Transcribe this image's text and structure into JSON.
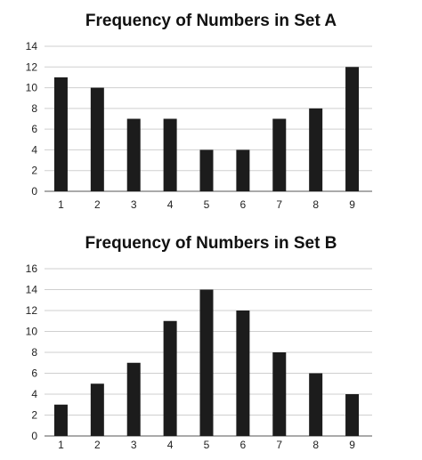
{
  "chart_data": [
    {
      "type": "bar",
      "title": "Frequency of Numbers in Set A",
      "xlabel": "",
      "ylabel": "",
      "categories": [
        "1",
        "2",
        "3",
        "4",
        "5",
        "6",
        "7",
        "8",
        "9"
      ],
      "values": [
        11,
        10,
        7,
        7,
        4,
        4,
        7,
        8,
        12
      ],
      "ylim": [
        0,
        14
      ],
      "yticks": [
        0,
        2,
        4,
        6,
        8,
        10,
        12,
        14
      ],
      "grid": true,
      "bar_color": "#1c1c1c"
    },
    {
      "type": "bar",
      "title": "Frequency of Numbers in Set B",
      "xlabel": "",
      "ylabel": "",
      "categories": [
        "1",
        "2",
        "3",
        "4",
        "5",
        "6",
        "7",
        "8",
        "9"
      ],
      "values": [
        3,
        5,
        7,
        11,
        14,
        12,
        8,
        6,
        4
      ],
      "ylim": [
        0,
        16
      ],
      "yticks": [
        0,
        2,
        4,
        6,
        8,
        10,
        12,
        14,
        16
      ],
      "grid": true,
      "bar_color": "#1c1c1c"
    }
  ]
}
